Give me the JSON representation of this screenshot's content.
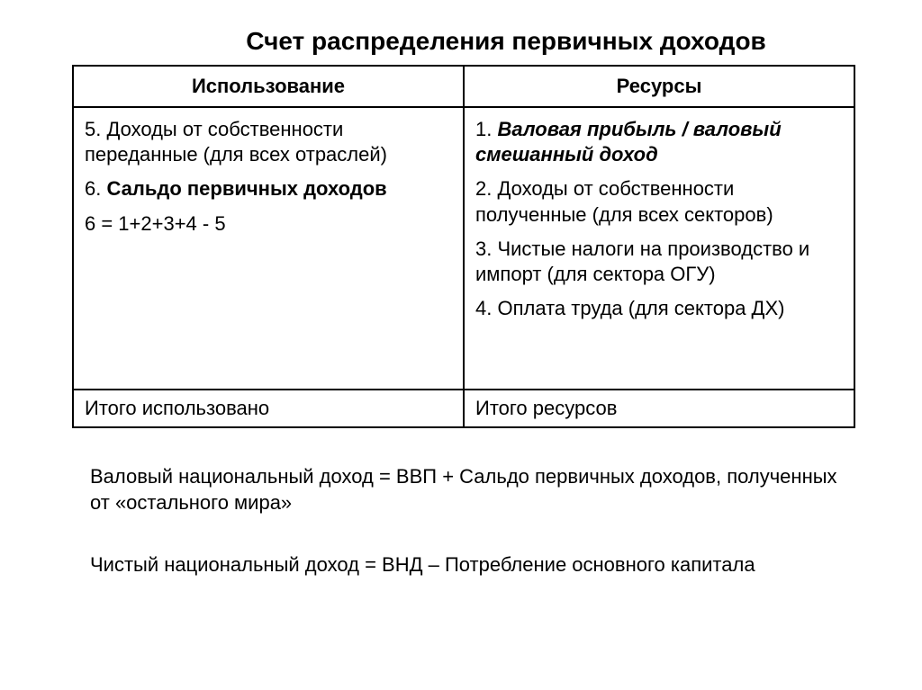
{
  "title": "Счет распределения первичных доходов",
  "table": {
    "headers": {
      "left": "Использование",
      "right": "Ресурсы"
    },
    "body": {
      "left": {
        "item5": "5. Доходы от собственности переданные (для всех отраслей)",
        "item6_label": "6. ",
        "item6_bold": "Сальдо первичных доходов",
        "formula": "6 = 1+2+3+4 - 5"
      },
      "right": {
        "item1_label": "1. ",
        "item1_bold": "Валовая прибыль / валовый смешанный доход",
        "item2": "2. Доходы от собственности полученные (для всех секторов)",
        "item3": "3. Чистые налоги на производство и импорт (для сектора ОГУ)",
        "item4": "4. Оплата труда (для сектора ДХ)"
      }
    },
    "totals": {
      "left": "Итого использовано",
      "right": "Итого ресурсов"
    }
  },
  "notes": {
    "n1": "Валовый национальный доход = ВВП + Сальдо первичных доходов, полученных от «остального мира»",
    "n2": "Чистый национальный доход = ВНД – Потребление основного капитала"
  },
  "style": {
    "background": "#ffffff",
    "text_color": "#000000",
    "border_color": "#000000",
    "title_fontsize": 28,
    "body_fontsize": 22,
    "border_width": 2
  }
}
